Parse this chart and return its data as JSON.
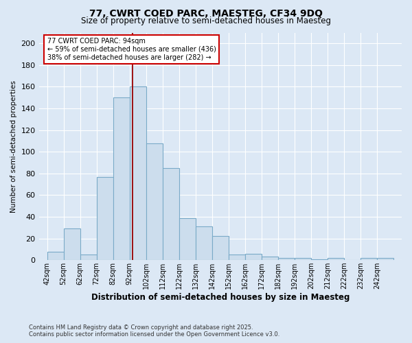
{
  "title_line1": "77, CWRT COED PARC, MAESTEG, CF34 9DQ",
  "title_line2": "Size of property relative to semi-detached houses in Maesteg",
  "xlabel": "Distribution of semi-detached houses by size in Maesteg",
  "ylabel": "Number of semi-detached properties",
  "bin_edges": [
    42,
    52,
    62,
    72,
    82,
    92,
    102,
    112,
    122,
    132,
    142,
    152,
    162,
    172,
    182,
    192,
    202,
    212,
    222,
    232,
    242,
    252
  ],
  "counts": [
    8,
    29,
    5,
    77,
    150,
    160,
    108,
    85,
    39,
    31,
    22,
    5,
    6,
    3,
    2,
    2,
    1,
    2,
    0,
    2,
    2
  ],
  "bar_color": "#ccdded",
  "bar_edgecolor": "#7aaac8",
  "vline_x": 94,
  "vline_color": "#990000",
  "annotation_text": "77 CWRT COED PARC: 94sqm\n← 59% of semi-detached houses are smaller (436)\n38% of semi-detached houses are larger (282) →",
  "annotation_box_color": "white",
  "annotation_box_edgecolor": "#cc0000",
  "ylim": [
    0,
    210
  ],
  "yticks": [
    0,
    20,
    40,
    60,
    80,
    100,
    120,
    140,
    160,
    180,
    200
  ],
  "background_color": "#dce8f5",
  "grid_color": "white",
  "footnote": "Contains HM Land Registry data © Crown copyright and database right 2025.\nContains public sector information licensed under the Open Government Licence v3.0."
}
